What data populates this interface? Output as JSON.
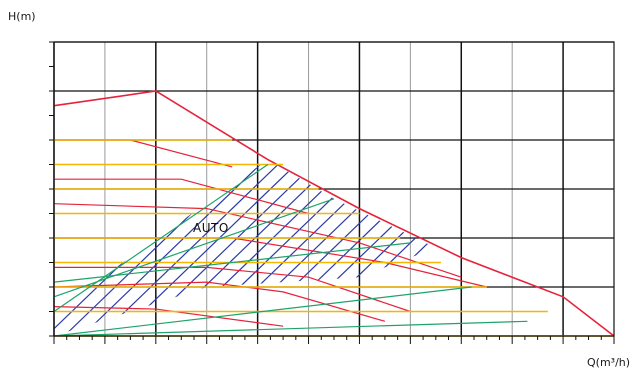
{
  "chart_data": {
    "type": "line",
    "title": "",
    "ylabel": "H(m)",
    "xlabel": "Q(m³/h)",
    "annotations": [
      "AUTO"
    ],
    "grid": true,
    "xlim": [
      0,
      11
    ],
    "ylim": [
      0,
      6
    ],
    "colors": {
      "max_curve": "#e5243b",
      "constant_pressure": "#f2b705",
      "proportional_pressure": "#1fa36a",
      "auto_region": "#2b3aa6",
      "fixed_speed": "#e5243b",
      "grid_major": "#111111",
      "grid_minor": "#9a9a9a"
    },
    "series": [
      {
        "group": "max_curve",
        "points": [
          [
            0,
            4.7
          ],
          [
            2,
            5.0
          ],
          [
            4.2,
            3.6
          ],
          [
            6,
            2.6
          ],
          [
            8,
            1.6
          ],
          [
            10,
            0.8
          ],
          [
            11,
            0
          ]
        ]
      },
      {
        "group": "fixed_speed",
        "points": [
          [
            0,
            4.0
          ],
          [
            1.5,
            4.0
          ],
          [
            3.5,
            3.45
          ]
        ]
      },
      {
        "group": "fixed_speed",
        "points": [
          [
            0,
            3.2
          ],
          [
            2.5,
            3.2
          ],
          [
            5,
            2.5
          ]
        ]
      },
      {
        "group": "fixed_speed",
        "points": [
          [
            0,
            2.7
          ],
          [
            3,
            2.6
          ],
          [
            6,
            1.9
          ],
          [
            8,
            1.2
          ]
        ]
      },
      {
        "group": "fixed_speed",
        "points": [
          [
            0,
            2.0
          ],
          [
            3.5,
            2.0
          ],
          [
            6.5,
            1.5
          ],
          [
            8.5,
            1.0
          ]
        ]
      },
      {
        "group": "fixed_speed",
        "points": [
          [
            0,
            1.4
          ],
          [
            3,
            1.4
          ],
          [
            5,
            1.2
          ],
          [
            7,
            0.5
          ]
        ]
      },
      {
        "group": "fixed_speed",
        "points": [
          [
            0,
            1.0
          ],
          [
            3,
            1.1
          ],
          [
            4.5,
            0.9
          ],
          [
            6.5,
            0.3
          ]
        ]
      },
      {
        "group": "fixed_speed",
        "points": [
          [
            0,
            0.6
          ],
          [
            2,
            0.55
          ],
          [
            4.5,
            0.2
          ]
        ]
      },
      {
        "group": "constant_pressure",
        "y": [
          4.0,
          3.5,
          3.0,
          2.5,
          2.0,
          1.5,
          1.0,
          0.5,
          0.0
        ],
        "x_start": 0,
        "x_end": [
          3.5,
          4.5,
          5.2,
          6.0,
          6.8,
          7.6,
          8.5,
          9.7,
          11
        ]
      },
      {
        "group": "proportional_pressure",
        "points": [
          [
            0,
            0.5
          ],
          [
            4.2,
            3.5
          ]
        ]
      },
      {
        "group": "proportional_pressure",
        "points": [
          [
            0,
            0.8
          ],
          [
            5.5,
            2.8
          ]
        ]
      },
      {
        "group": "proportional_pressure",
        "points": [
          [
            0,
            1.1
          ],
          [
            7,
            1.9
          ]
        ]
      },
      {
        "group": "proportional_pressure",
        "points": [
          [
            0,
            0.0
          ],
          [
            8.2,
            1.0
          ]
        ]
      },
      {
        "group": "proportional_pressure",
        "points": [
          [
            0,
            0.0
          ],
          [
            9.3,
            0.3
          ]
        ]
      }
    ]
  }
}
